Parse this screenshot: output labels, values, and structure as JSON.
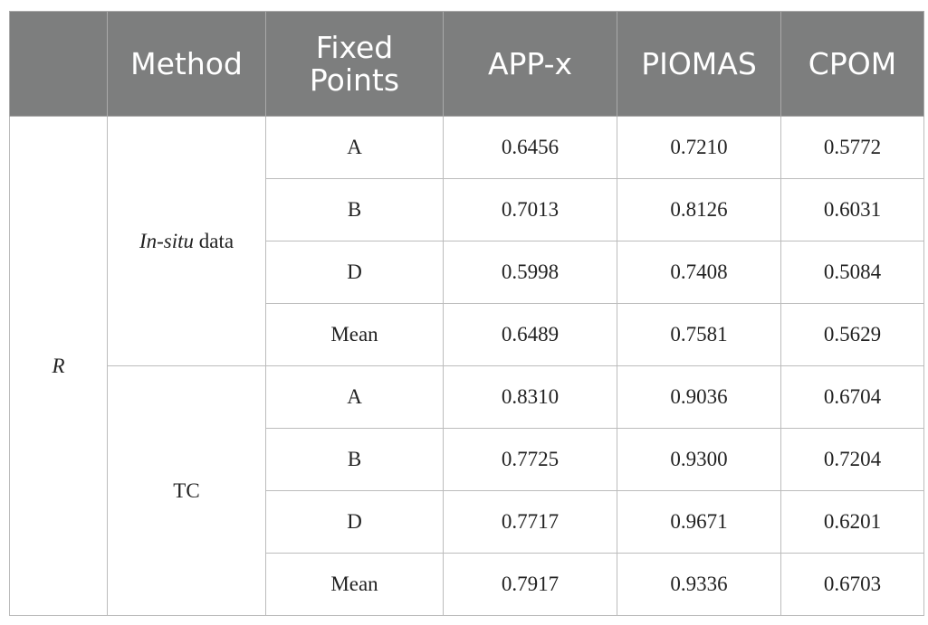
{
  "table": {
    "header": [
      "Method",
      "Fixed Points",
      "APP-x",
      "PIOMAS",
      "CPOM"
    ],
    "metric": "R",
    "groups": [
      {
        "method": {
          "emphasis": "In-situ",
          "text": "data"
        },
        "rows": [
          {
            "point": "A",
            "values": [
              "0.6456",
              "0.7210",
              "0.5772"
            ]
          },
          {
            "point": "B",
            "values": [
              "0.7013",
              "0.8126",
              "0.6031"
            ]
          },
          {
            "point": "D",
            "values": [
              "0.5998",
              "0.7408",
              "0.5084"
            ]
          },
          {
            "point": "Mean",
            "values": [
              "0.6489",
              "0.7581",
              "0.5629"
            ]
          }
        ]
      },
      {
        "method": {
          "text": "TC"
        },
        "rows": [
          {
            "point": "A",
            "values": [
              "0.8310",
              "0.9036",
              "0.6704"
            ]
          },
          {
            "point": "B",
            "values": [
              "0.7725",
              "0.9300",
              "0.7204"
            ]
          },
          {
            "point": "D",
            "values": [
              "0.7717",
              "0.9671",
              "0.6201"
            ]
          },
          {
            "point": "Mean",
            "values": [
              "0.7917",
              "0.9336",
              "0.6703"
            ]
          }
        ]
      }
    ]
  }
}
